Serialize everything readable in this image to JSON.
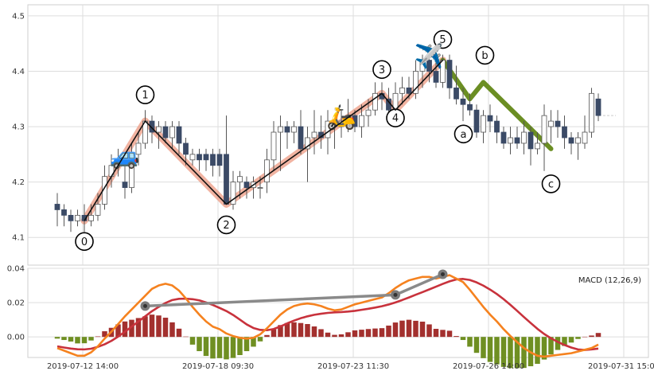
{
  "chart_data": [
    {
      "type": "candlestick",
      "x_tick_labels": [
        "2019-07-12 14:00",
        "2019-07-18 09:30",
        "2019-07-23 11:30",
        "2019-07-26 14:00",
        "2019-07-31 15:00"
      ],
      "ylim": [
        4.05,
        4.52
      ],
      "yticks": [
        4.1,
        4.2,
        4.3,
        4.4,
        4.5
      ],
      "ytick_labels": [
        "4.1",
        "4.2",
        "4.3",
        "4.4",
        "4.5"
      ],
      "grid": true,
      "candles": [
        [
          4.16,
          4.15,
          4.18,
          4.12
        ],
        [
          4.15,
          4.14,
          4.16,
          4.12
        ],
        [
          4.14,
          4.13,
          4.15,
          4.11
        ],
        [
          4.13,
          4.14,
          4.15,
          4.12
        ],
        [
          4.14,
          4.13,
          4.16,
          4.11
        ],
        [
          4.13,
          4.14,
          4.16,
          4.12
        ],
        [
          4.14,
          4.16,
          4.18,
          4.13
        ],
        [
          4.16,
          4.21,
          4.23,
          4.15
        ],
        [
          4.21,
          4.23,
          4.25,
          4.19
        ],
        [
          4.23,
          4.24,
          4.26,
          4.21
        ],
        [
          4.2,
          4.19,
          4.24,
          4.17
        ],
        [
          4.19,
          4.25,
          4.27,
          4.18
        ],
        [
          4.25,
          4.27,
          4.29,
          4.23
        ],
        [
          4.27,
          4.31,
          4.33,
          4.26
        ],
        [
          4.31,
          4.29,
          4.32,
          4.27
        ],
        [
          4.29,
          4.3,
          4.31,
          4.26
        ],
        [
          4.3,
          4.28,
          4.31,
          4.27
        ],
        [
          4.28,
          4.3,
          4.31,
          4.26
        ],
        [
          4.3,
          4.27,
          4.31,
          4.25
        ],
        [
          4.27,
          4.25,
          4.28,
          4.23
        ],
        [
          4.24,
          4.25,
          4.26,
          4.23
        ],
        [
          4.25,
          4.24,
          4.26,
          4.22
        ],
        [
          4.25,
          4.24,
          4.26,
          4.22
        ],
        [
          4.25,
          4.23,
          4.26,
          4.21
        ],
        [
          4.25,
          4.23,
          4.26,
          4.21
        ],
        [
          4.25,
          4.16,
          4.32,
          4.16
        ],
        [
          4.16,
          4.2,
          4.22,
          4.15
        ],
        [
          4.2,
          4.21,
          4.22,
          4.17
        ],
        [
          4.2,
          4.19,
          4.21,
          4.17
        ],
        [
          4.19,
          4.2,
          4.21,
          4.17
        ],
        [
          4.19,
          4.19,
          4.21,
          4.17
        ],
        [
          4.2,
          4.24,
          4.26,
          4.18
        ],
        [
          4.24,
          4.29,
          4.31,
          4.22
        ],
        [
          4.29,
          4.3,
          4.32,
          4.22
        ],
        [
          4.3,
          4.29,
          4.31,
          4.26
        ],
        [
          4.29,
          4.3,
          4.31,
          4.27
        ],
        [
          4.3,
          4.26,
          4.33,
          4.25
        ],
        [
          4.26,
          4.28,
          4.3,
          4.2
        ],
        [
          4.28,
          4.29,
          4.33,
          4.25
        ],
        [
          4.29,
          4.28,
          4.32,
          4.26
        ],
        [
          4.28,
          4.31,
          4.33,
          4.25
        ],
        [
          4.31,
          4.3,
          4.32,
          4.26
        ],
        [
          4.3,
          4.31,
          4.33,
          4.28
        ],
        [
          4.31,
          4.32,
          4.35,
          4.29
        ],
        [
          4.32,
          4.3,
          4.33,
          4.29
        ],
        [
          4.3,
          4.32,
          4.34,
          4.28
        ],
        [
          4.32,
          4.33,
          4.35,
          4.3
        ],
        [
          4.33,
          4.36,
          4.38,
          4.32
        ],
        [
          4.36,
          4.35,
          4.38,
          4.33
        ],
        [
          4.35,
          4.33,
          4.37,
          4.31
        ],
        [
          4.33,
          4.36,
          4.38,
          4.31
        ],
        [
          4.36,
          4.37,
          4.39,
          4.34
        ],
        [
          4.37,
          4.36,
          4.39,
          4.35
        ],
        [
          4.36,
          4.4,
          4.42,
          4.35
        ],
        [
          4.4,
          4.42,
          4.43,
          4.37
        ],
        [
          4.42,
          4.4,
          4.43,
          4.38
        ],
        [
          4.4,
          4.38,
          4.42,
          4.37
        ],
        [
          4.38,
          4.42,
          4.43,
          4.37
        ],
        [
          4.42,
          4.37,
          4.43,
          4.35
        ],
        [
          4.37,
          4.35,
          4.41,
          4.34
        ],
        [
          4.35,
          4.34,
          4.37,
          4.31
        ],
        [
          4.34,
          4.33,
          4.36,
          4.32
        ],
        [
          4.33,
          4.29,
          4.34,
          4.28
        ],
        [
          4.29,
          4.32,
          4.33,
          4.27
        ],
        [
          4.32,
          4.31,
          4.34,
          4.29
        ],
        [
          4.31,
          4.29,
          4.32,
          4.27
        ],
        [
          4.29,
          4.27,
          4.3,
          4.26
        ],
        [
          4.27,
          4.28,
          4.3,
          4.25
        ],
        [
          4.28,
          4.27,
          4.3,
          4.26
        ],
        [
          4.27,
          4.29,
          4.31,
          4.25
        ],
        [
          4.29,
          4.26,
          4.3,
          4.23
        ],
        [
          4.26,
          4.27,
          4.29,
          4.25
        ],
        [
          4.27,
          4.32,
          4.34,
          4.22
        ],
        [
          4.3,
          4.31,
          4.33,
          4.27
        ],
        [
          4.31,
          4.3,
          4.33,
          4.28
        ],
        [
          4.3,
          4.28,
          4.32,
          4.26
        ],
        [
          4.28,
          4.27,
          4.29,
          4.25
        ],
        [
          4.27,
          4.28,
          4.29,
          4.24
        ],
        [
          4.27,
          4.29,
          4.32,
          4.26
        ],
        [
          4.29,
          4.36,
          4.37,
          4.28
        ],
        [
          4.35,
          4.32,
          4.36,
          4.31
        ]
      ],
      "last_price": 4.32,
      "wave_points": [
        {
          "label": "0",
          "idx": 4,
          "price": 4.13
        },
        {
          "label": "1",
          "idx": 13,
          "price": 4.31
        },
        {
          "label": "2",
          "idx": 25,
          "price": 4.16
        },
        {
          "label": "3",
          "idx": 48,
          "price": 4.36
        },
        {
          "label": "4",
          "idx": 50,
          "price": 4.33
        },
        {
          "label": "5",
          "idx": 57,
          "price": 4.42
        }
      ],
      "correction_points": [
        {
          "label": "a",
          "idx": 61,
          "price": 4.35
        },
        {
          "label": "b",
          "idx": 63,
          "price": 4.38
        },
        {
          "label": "c",
          "idx": 73,
          "price": 4.26
        }
      ],
      "icons": [
        {
          "name": "car-icon",
          "glyph": "🚙",
          "idx": 10,
          "price": 4.25
        },
        {
          "name": "scooter-icon",
          "glyph": "🛵",
          "idx": 42,
          "price": 4.32
        },
        {
          "name": "airplane-icon",
          "glyph": "✈️",
          "idx": 55,
          "price": 4.43
        }
      ],
      "colors": {
        "up": "#ffffff",
        "down": "#3b4a66",
        "wick": "#555555",
        "impulse_glow": "#ec9a82",
        "impulse_line": "#111111",
        "correction": "#6b8e23"
      }
    },
    {
      "type": "macd",
      "legend": "MACD (12,26,9)",
      "ylim": [
        -0.012,
        0.04
      ],
      "yticks": [
        0.0,
        0.02,
        0.04
      ],
      "ytick_labels": [
        "0.00",
        "0.02",
        "0.04"
      ],
      "macd": [
        -0.0065,
        -0.008,
        -0.0095,
        -0.011,
        -0.011,
        -0.009,
        -0.0055,
        -0.001,
        0.003,
        0.0075,
        0.012,
        0.016,
        0.02,
        0.024,
        0.028,
        0.03,
        0.031,
        0.03,
        0.027,
        0.0225,
        0.0175,
        0.013,
        0.009,
        0.006,
        0.0045,
        0.002,
        0.0005,
        -0.0005,
        -0.001,
        -0.0005,
        0.0015,
        0.005,
        0.009,
        0.013,
        0.016,
        0.018,
        0.019,
        0.0195,
        0.019,
        0.018,
        0.0165,
        0.0155,
        0.016,
        0.0175,
        0.019,
        0.02,
        0.021,
        0.022,
        0.023,
        0.0255,
        0.0285,
        0.031,
        0.033,
        0.034,
        0.035,
        0.035,
        0.034,
        0.035,
        0.036,
        0.034,
        0.032,
        0.0275,
        0.0225,
        0.0175,
        0.013,
        0.009,
        0.0045,
        0.0005,
        -0.003,
        -0.0065,
        -0.009,
        -0.011,
        -0.0115,
        -0.011,
        -0.0105,
        -0.01,
        -0.0095,
        -0.0085,
        -0.0075,
        -0.0065,
        -0.0045
      ],
      "signal": [
        -0.0055,
        -0.0062,
        -0.0068,
        -0.0072,
        -0.0073,
        -0.0069,
        -0.0058,
        -0.0043,
        -0.0023,
        0.0002,
        0.003,
        0.006,
        0.009,
        0.012,
        0.015,
        0.0175,
        0.0198,
        0.0215,
        0.0222,
        0.0223,
        0.022,
        0.0213,
        0.0201,
        0.0186,
        0.0169,
        0.0151,
        0.0128,
        0.0101,
        0.0073,
        0.0052,
        0.0041,
        0.0039,
        0.0046,
        0.0061,
        0.0079,
        0.0095,
        0.0109,
        0.012,
        0.0129,
        0.0135,
        0.014,
        0.0143,
        0.0145,
        0.0148,
        0.0152,
        0.0158,
        0.0164,
        0.0171,
        0.0179,
        0.0189,
        0.0201,
        0.0215,
        0.023,
        0.0246,
        0.0261,
        0.0277,
        0.0293,
        0.0309,
        0.0324,
        0.0335,
        0.0338,
        0.0332,
        0.0318,
        0.0299,
        0.0276,
        0.025,
        0.022,
        0.0187,
        0.0152,
        0.0116,
        0.0081,
        0.0047,
        0.0017,
        -0.0008,
        -0.0029,
        -0.0047,
        -0.0062,
        -0.0073,
        -0.0076,
        -0.0073,
        -0.0068
      ],
      "divergence_line": [
        {
          "idx": 13,
          "value": 0.018
        },
        {
          "idx": 50,
          "value": 0.0245
        },
        {
          "idx": 57,
          "value": 0.0365
        }
      ],
      "colors": {
        "macd": "#f5821f",
        "signal": "#c8323c",
        "hist_pos": "#a3302e",
        "hist_neg": "#6f8f22",
        "divergence": "#8a8a8a"
      }
    }
  ]
}
